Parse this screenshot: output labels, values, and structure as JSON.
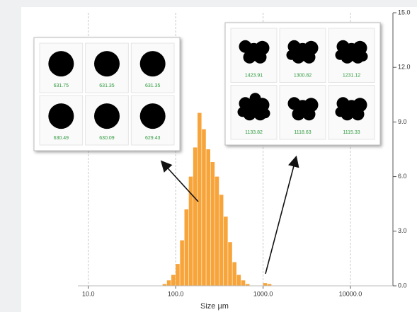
{
  "chart_data": {
    "type": "histogram",
    "x_label": "Size µm",
    "xscale": "log",
    "xlim": [
      7.6,
      30600
    ],
    "xticks": [
      {
        "value": 10,
        "label": "10.0"
      },
      {
        "value": 100,
        "label": "100.0"
      },
      {
        "value": 1000,
        "label": "1000.0"
      },
      {
        "value": 10000,
        "label": "10000.0"
      }
    ],
    "ylim": [
      0,
      15
    ],
    "yticks": [
      {
        "value": 0,
        "label": "0.0"
      },
      {
        "value": 3,
        "label": "3.0"
      },
      {
        "value": 6,
        "label": "6.0"
      },
      {
        "value": 9,
        "label": "9.0"
      },
      {
        "value": 12,
        "label": "12.0"
      },
      {
        "value": 15,
        "label": "15.0"
      }
    ],
    "grid": true,
    "color": "#f7a43a",
    "bins": [
      63.1,
      70.8,
      79.4,
      89.1,
      100,
      112.2,
      125.9,
      141.3,
      158.5,
      177.8,
      199.5,
      223.9,
      251.2,
      281.8,
      316.2,
      354.8,
      398.1,
      446.7,
      501.2,
      562.3,
      631.0,
      707.9,
      794.3,
      891.3,
      1000,
      1122,
      1259
    ],
    "counts": [
      0,
      0.1,
      0.3,
      0.6,
      1.2,
      2.5,
      4.2,
      6.0,
      7.6,
      9.5,
      8.6,
      7.5,
      6.8,
      6.0,
      5.0,
      3.8,
      2.4,
      1.3,
      0.6,
      0.3,
      0.1,
      0,
      0,
      0,
      0.15,
      0.1
    ],
    "insets": [
      [
        "631.75",
        "631.35",
        "631.35",
        "630.49",
        "630.09",
        "629.43"
      ],
      [
        "1423.91",
        "1300.82",
        "1231.12",
        "1133.82",
        "1118.63",
        "1115.33"
      ]
    ]
  }
}
